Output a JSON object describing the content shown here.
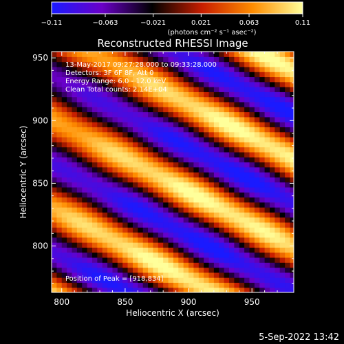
{
  "colorbar": {
    "min_label": "−0.11",
    "max_label": "0.11",
    "ticks": [
      "−0.11",
      "−0.063",
      "−0.021",
      "0.021",
      "0.063",
      "0.11"
    ],
    "tick_values": [
      -0.11,
      -0.063,
      -0.021,
      0.021,
      0.063,
      0.11
    ],
    "units_label": "(photons cm⁻² s⁻¹ asec⁻²)",
    "colors": [
      "#1a1aff",
      "#6a00c8",
      "#000000",
      "#c81e00",
      "#ff8c00",
      "#ffff9a"
    ]
  },
  "chart_data": {
    "type": "heatmap",
    "title": "Reconstructed RHESSI Image",
    "xlabel": "Heliocentric X (arcsec)",
    "ylabel": "Heliocentric Y (arcsec)",
    "xlim": [
      792,
      983
    ],
    "ylim": [
      763,
      955
    ],
    "x_ticks": [
      800,
      850,
      900,
      950
    ],
    "y_ticks": [
      800,
      850,
      900,
      950
    ],
    "value_range": [
      -0.11,
      0.11
    ],
    "pattern": {
      "description": "diagonal stripes",
      "peak": [
        918,
        834
      ],
      "amplitude": 0.11,
      "stripe_period_arcsec": 62,
      "stripe_direction_deg": 62
    },
    "annotations": {
      "time_range": "13-May-2017 09:27:28.000 to 09:33:28.000",
      "detectors": "Detectors: 3F 6F 8F, Att 0",
      "energy": "Energy Range: 6.0 - 12.0 keV",
      "method": "Clean     Total counts: 2.14E+04",
      "peak": "Position of Peak = [918,834]"
    }
  },
  "footer": {
    "date": "5-Sep-2022 13:42"
  }
}
